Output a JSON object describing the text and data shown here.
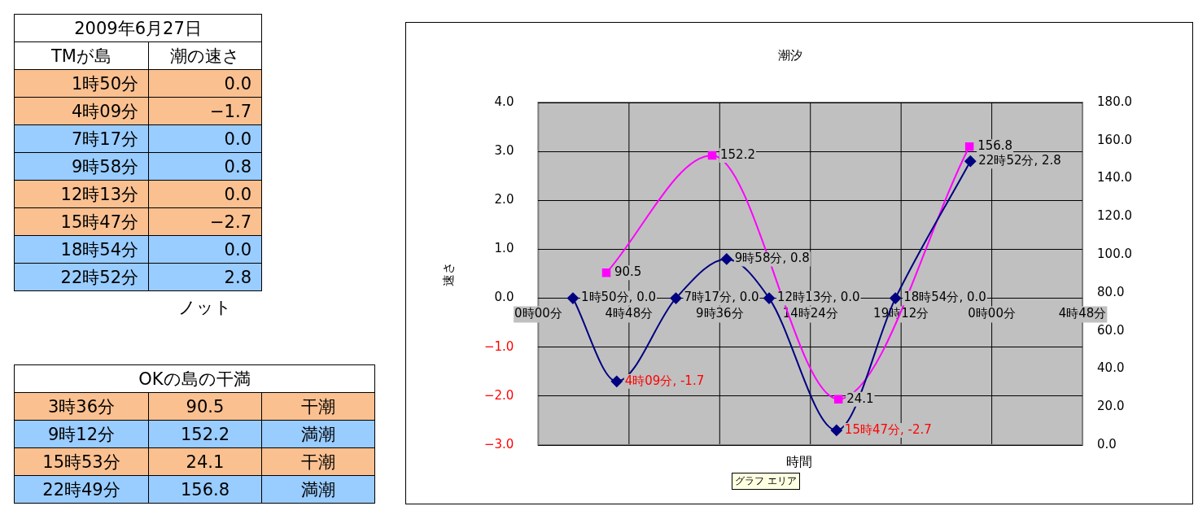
{
  "chart_data": [
    {
      "type": "other",
      "title": "2009年6月27日",
      "categories": [
        "TMが島",
        "潮の速さ"
      ],
      "cell_labels": [
        [
          "1時50分",
          "0.0"
        ],
        [
          "4時09分",
          "−1.7"
        ],
        [
          "7時17分",
          "0.0"
        ],
        [
          "9時58分",
          "0.8"
        ],
        [
          "12時13分",
          "0.0"
        ],
        [
          "15時47分",
          "−2.7"
        ],
        [
          "18時54分",
          "0.0"
        ],
        [
          "22時52分",
          "2.8"
        ]
      ],
      "colors": [
        "#fac090",
        "#fac090",
        "#99ccff",
        "#99ccff",
        "#fac090",
        "#fac090",
        "#99ccff",
        "#99ccff"
      ],
      "annotations": [
        "ノット"
      ]
    },
    {
      "type": "other",
      "title": "OKの島の干満",
      "cell_labels": [
        [
          "3時36分",
          "90.5",
          "干潮"
        ],
        [
          "9時12分",
          "152.2",
          "満潮"
        ],
        [
          "15時53分",
          "24.1",
          "干潮"
        ],
        [
          "22時49分",
          "156.8",
          "満潮"
        ]
      ],
      "colors": [
        "#fac090",
        "#99ccff",
        "#fac090",
        "#99ccff"
      ]
    },
    {
      "type": "line",
      "title": "潮汐",
      "xlabel": "時間",
      "ylabel": "速さ",
      "xlim": [
        "2009-06-27T00:00",
        "2009-06-28T04:48"
      ],
      "xticks": [
        {
          "value": "2009-06-27T00:00",
          "label": "0時00分"
        },
        {
          "value": "2009-06-27T04:48",
          "label": "4時48分"
        },
        {
          "value": "2009-06-27T09:36",
          "label": "9時36分"
        },
        {
          "value": "2009-06-27T14:24",
          "label": "14時24分"
        },
        {
          "value": "2009-06-27T19:12",
          "label": "19時12分"
        },
        {
          "value": "2009-06-28T00:00",
          "label": "0時00分"
        },
        {
          "value": "2009-06-28T04:48",
          "label": "4時48分"
        }
      ],
      "ylim": [
        -3,
        4
      ],
      "yticks": [
        {
          "value": -3,
          "label": "−3.0"
        },
        {
          "value": -2,
          "label": "−2.0"
        },
        {
          "value": -1,
          "label": "−1.0"
        },
        {
          "value": 0,
          "label": "0.0"
        },
        {
          "value": 1,
          "label": "1.0"
        },
        {
          "value": 2,
          "label": "2.0"
        },
        {
          "value": 3,
          "label": "3.0"
        },
        {
          "value": 4,
          "label": "4.0"
        }
      ],
      "y2lim": [
        0,
        180
      ],
      "y2ticks": [
        {
          "value": 0,
          "label": "0.0"
        },
        {
          "value": 20,
          "label": "20.0"
        },
        {
          "value": 40,
          "label": "40.0"
        },
        {
          "value": 60,
          "label": "60.0"
        },
        {
          "value": 80,
          "label": "80.0"
        },
        {
          "value": 100,
          "label": "100.0"
        },
        {
          "value": 120,
          "label": "120.0"
        },
        {
          "value": 140,
          "label": "140.0"
        },
        {
          "value": 160,
          "label": "160.0"
        },
        {
          "value": 180,
          "label": "180.0"
        }
      ],
      "grid": true,
      "legend": false,
      "line_style": "solid",
      "series": [
        {
          "color": "#000080",
          "marker": "diamond",
          "x": [
            "2009-06-27T01:50",
            "2009-06-27T04:09",
            "2009-06-27T07:17",
            "2009-06-27T09:58",
            "2009-06-27T12:13",
            "2009-06-27T15:47",
            "2009-06-27T18:54",
            "2009-06-27T22:52"
          ],
          "values": [
            0,
            -1.7,
            0,
            0.8,
            0,
            -2.7,
            0,
            2.8
          ],
          "value_labels": [
            "1時50分, 0.0",
            "4時09分, -1.7",
            "7時17分, 0.0",
            "9時58分, 0.8",
            "12時13分, 0.0",
            "15時47分, -2.7",
            "18時54分, 0.0",
            "22時52分, 2.8"
          ]
        },
        {
          "color": "#ff00ff",
          "marker": "square",
          "axis": "y2",
          "x": [
            "2009-06-27T03:36",
            "2009-06-27T09:12",
            "2009-06-27T15:53",
            "2009-06-27T22:49"
          ],
          "values": [
            90.5,
            152.2,
            24.1,
            156.8
          ],
          "value_labels": [
            "90.5",
            "152.2",
            "24.1",
            "156.8"
          ]
        }
      ],
      "annotations": [
        "グラフ エリア"
      ]
    }
  ]
}
